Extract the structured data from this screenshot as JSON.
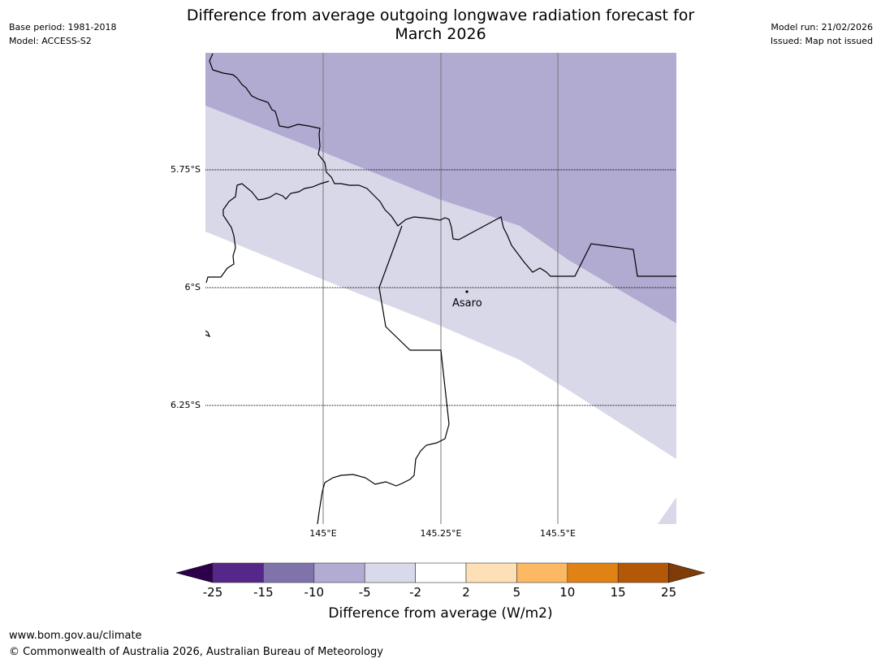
{
  "title_line1": "Difference from average outgoing longwave radiation forecast for",
  "title_line2": "March 2026",
  "base_period": "Base period: 1981-2018",
  "model": "Model: ACCESS-S2",
  "model_run": "Model run: 21/02/2026",
  "issued": "Issued: Map not issued",
  "map": {
    "lat_labels": [
      "5.75°S",
      "6°S",
      "6.25°S"
    ],
    "lon_labels": [
      "145°E",
      "145.25°E",
      "145.5°E"
    ],
    "place_label": "Asaro"
  },
  "colorbar": {
    "ticks": [
      "-25",
      "-15",
      "-10",
      "-5",
      "-2",
      "2",
      "5",
      "10",
      "15",
      "25"
    ],
    "colors": [
      "#2d004b",
      "#542788",
      "#8073ac",
      "#b2abd2",
      "#d8daeb",
      "#ffffff",
      "#fee0b6",
      "#fdb863",
      "#e08214",
      "#b35806",
      "#7f3b08"
    ],
    "label": "Difference from average (W/m2)"
  },
  "footer_url": "www.bom.gov.au/climate",
  "footer_copyright": "© Commonwealth of Australia 2026, Australian Bureau of Meteorology"
}
